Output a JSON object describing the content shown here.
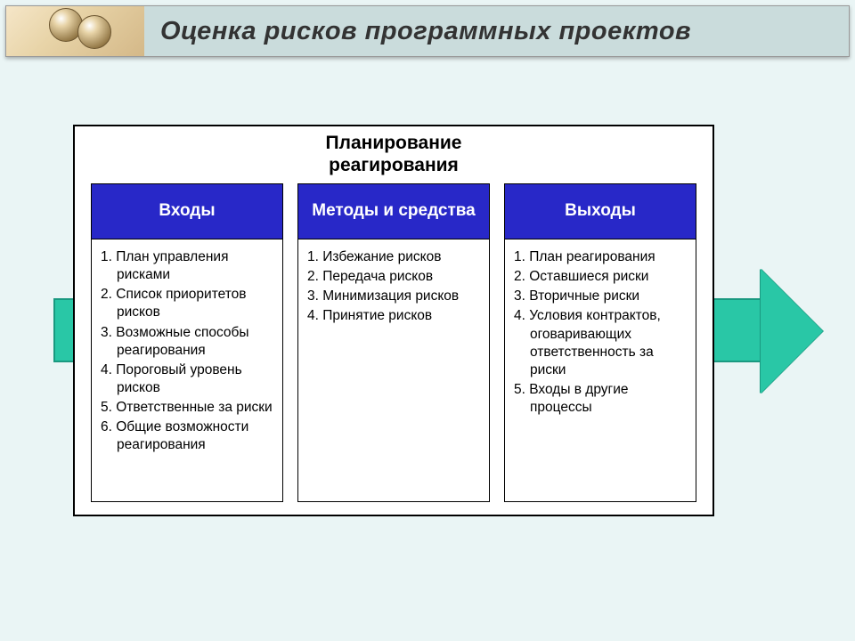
{
  "slide": {
    "title": "Оценка рисков программных проектов",
    "title_fontsize": 29,
    "title_bg": "#cadcdc",
    "page_bg": "#eaf5f5",
    "ornament_gradient": [
      "#f5e6c8",
      "#e8d4a8",
      "#d4b888"
    ]
  },
  "diagram": {
    "main_title_line1": "Планирование",
    "main_title_line2": "реагирования",
    "main_title_fontsize": 21,
    "main_box_border": "#000000",
    "main_box_bg": "#ffffff",
    "arrow_fill": "#29c7a6",
    "arrow_border": "#1a9980",
    "column_header_bg": "#2828c8",
    "column_header_color": "#ffffff",
    "column_header_fontsize": 19,
    "body_fontsize": 15.5,
    "columns": [
      {
        "header": "Входы",
        "items": [
          "План управления рисками",
          "Список приоритетов рисков",
          "Возможные способы реагирования",
          "Пороговый уровень рисков",
          "Ответственные за риски",
          "Общие возможности реагирования"
        ]
      },
      {
        "header": "Методы и средства",
        "items": [
          "Избежание рисков",
          "Передача рисков",
          "Минимизация рисков",
          "Принятие рисков"
        ]
      },
      {
        "header": "Выходы",
        "items": [
          "План реагирования",
          "Оставшиеся риски",
          "Вторичные риски",
          "Условия контрактов, оговаривающих ответственность за риски",
          "Входы в другие процессы"
        ]
      }
    ]
  }
}
